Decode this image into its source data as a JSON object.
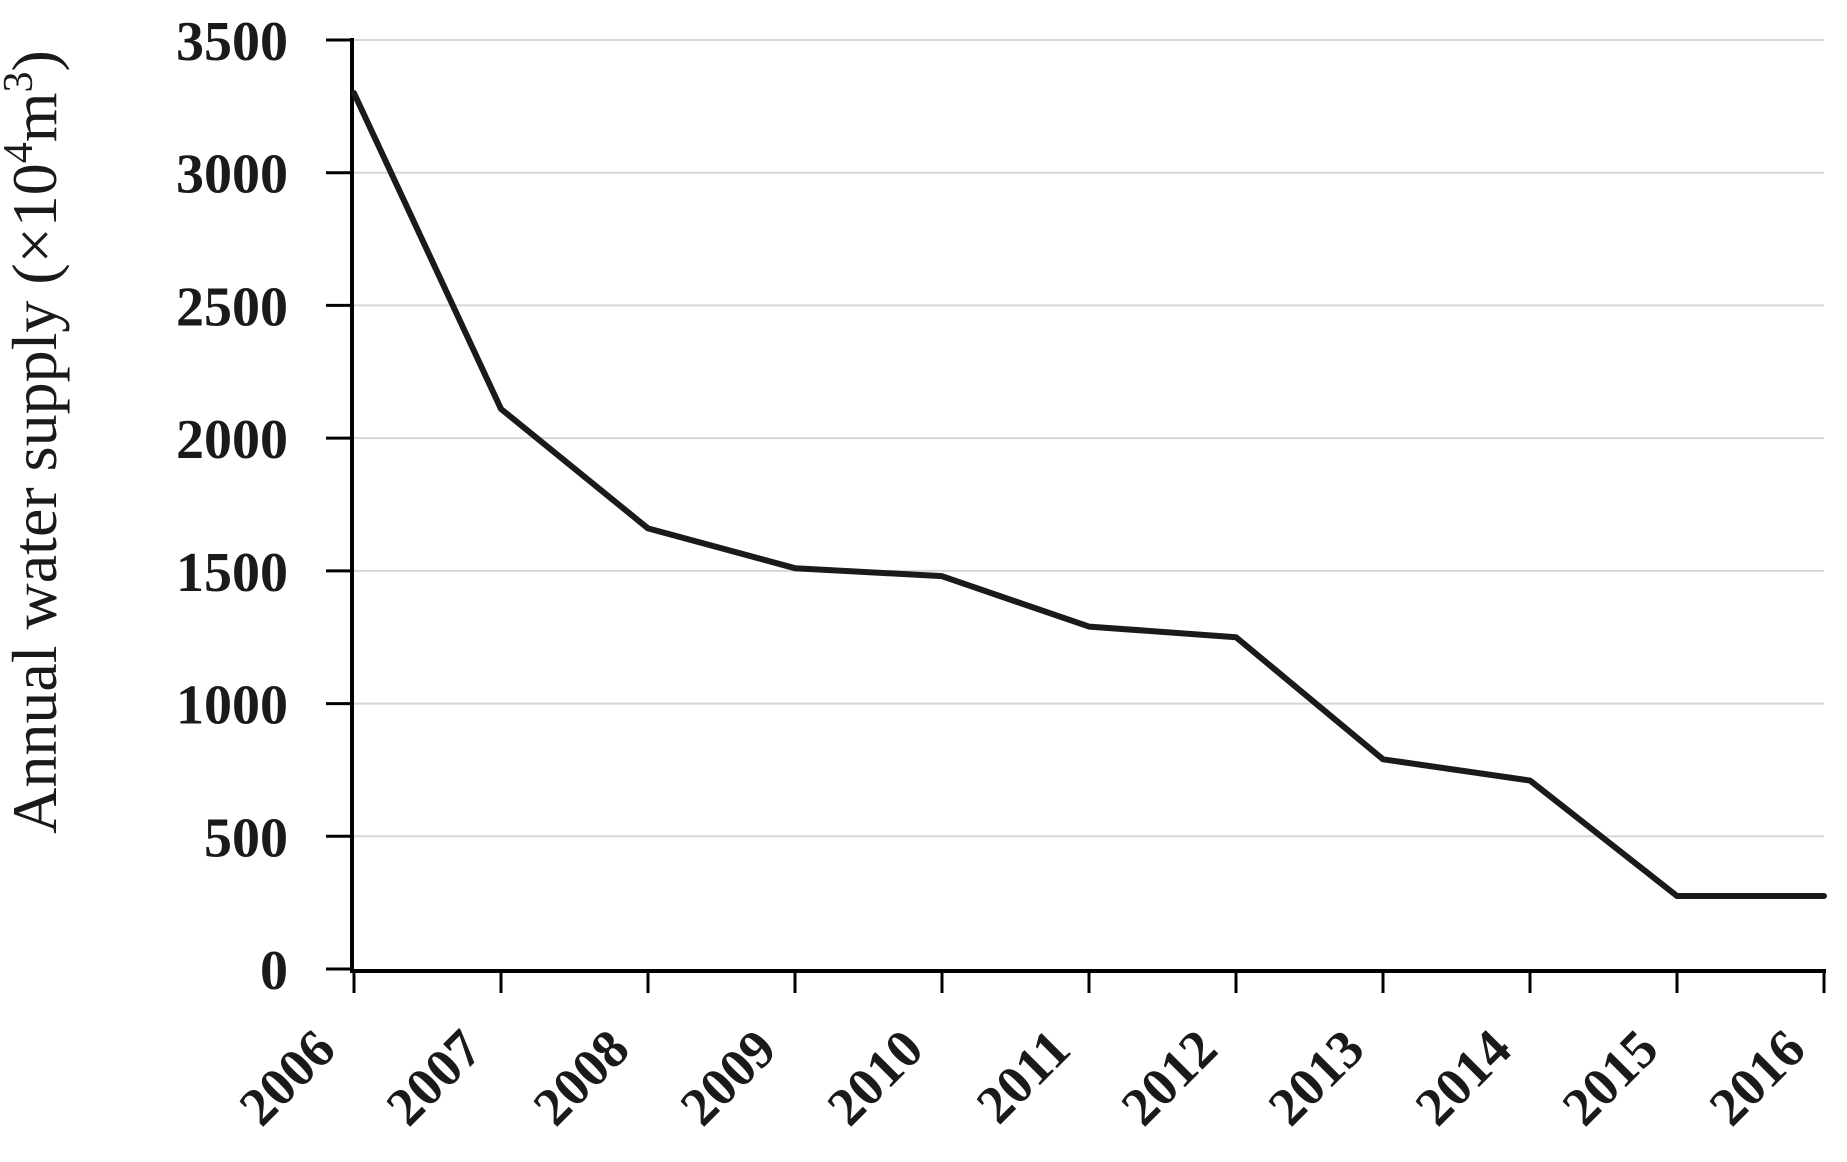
{
  "chart_data": {
    "type": "line",
    "title": "",
    "ylabel_plain": "Annual water supply (×10⁴m³)",
    "ylabel_parts": [
      {
        "text": "Annual water supply (×10",
        "superscript": false
      },
      {
        "text": "4",
        "superscript": true
      },
      {
        "text": "m",
        "superscript": false
      },
      {
        "text": "3",
        "superscript": true
      },
      {
        "text": ")",
        "superscript": false
      }
    ],
    "xlabel": "",
    "categories": [
      "2006",
      "2007",
      "2008",
      "2009",
      "2010",
      "2011",
      "2012",
      "2013",
      "2014",
      "2015",
      "2016"
    ],
    "values": [
      3300,
      2110,
      1660,
      1510,
      1480,
      1290,
      1250,
      790,
      710,
      275,
      275
    ],
    "ylim": [
      0,
      3500
    ],
    "y_ticks": [
      0,
      500,
      1000,
      1500,
      2000,
      2500,
      3000,
      3500
    ],
    "y_tick_labels": [
      "0",
      "500",
      "1000",
      "1500",
      "2000",
      "2500",
      "3000",
      "3500"
    ],
    "grid": "horizontal",
    "legend_position": "none",
    "colors": {
      "line": "#1a1a1a",
      "grid": "#d6d6d6",
      "axis": "#000000",
      "text": "#1a1a1a",
      "background": "#ffffff"
    }
  }
}
